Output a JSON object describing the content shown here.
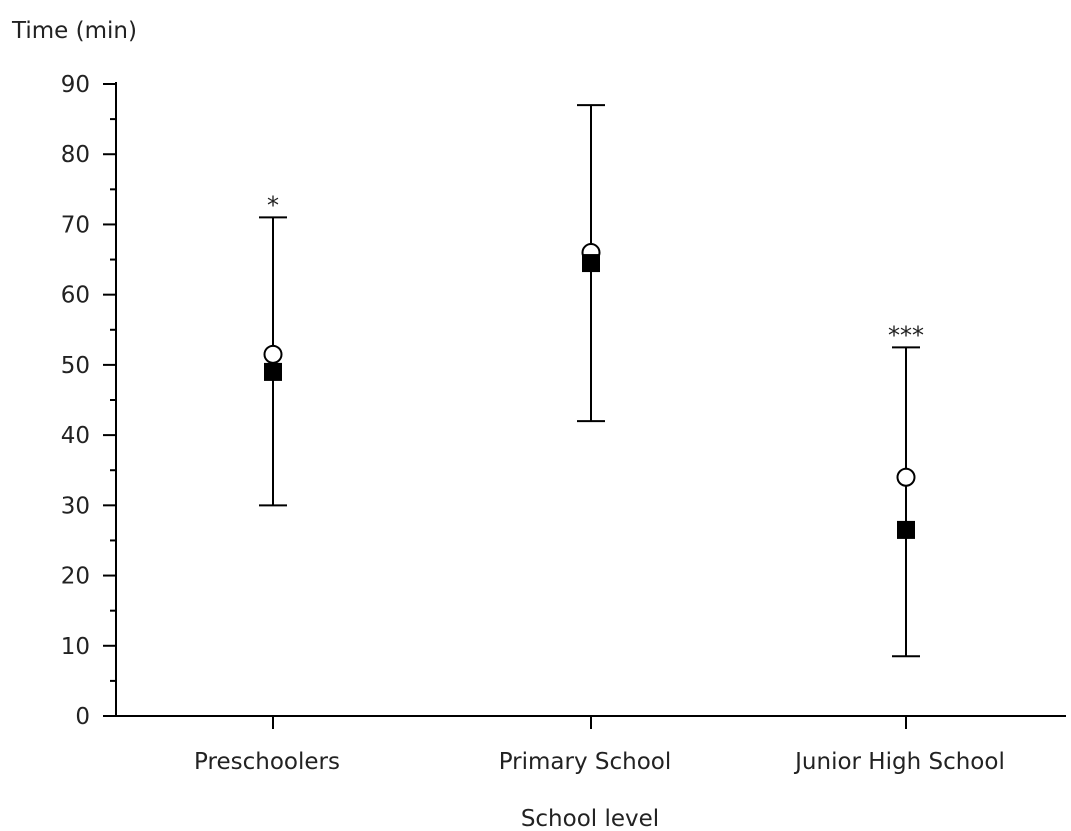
{
  "chart_data": {
    "type": "scatter",
    "ylabel": "Time (min)",
    "xlabel": "School level",
    "categories": [
      "Preschoolers",
      "Primary School",
      "Junior High School"
    ],
    "ylim": [
      0,
      90
    ],
    "y_ticks": [
      0,
      10,
      20,
      30,
      40,
      50,
      60,
      70,
      80,
      90
    ],
    "grid": false,
    "legend": "none",
    "series": [
      {
        "marker": "open-circle",
        "values": [
          51.5,
          66,
          34
        ],
        "error_low": [
          30,
          42,
          8.5
        ],
        "error_high": [
          71,
          87,
          52.5
        ]
      },
      {
        "marker": "filled-square",
        "values": [
          49,
          64.5,
          26.5
        ]
      }
    ],
    "annotations": [
      "*",
      "",
      "***"
    ],
    "colors": {
      "axis": "#000000",
      "marker_fill_open": "#ffffff",
      "marker_fill_solid": "#000000",
      "text": "#222222"
    }
  }
}
